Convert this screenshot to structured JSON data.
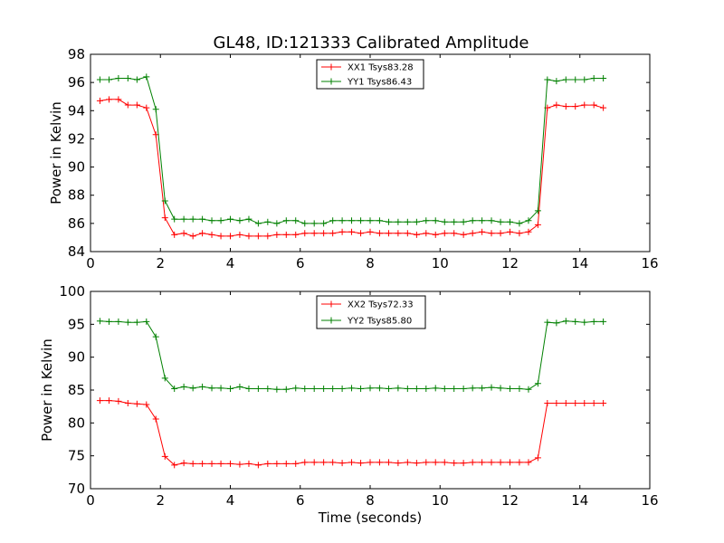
{
  "figure": {
    "title": "GL48, ID:121333 Calibrated Amplitude"
  },
  "colors": {
    "series_red": "#ff0000",
    "series_green": "#008000",
    "axes": "#000000",
    "background": "#ffffff"
  },
  "chart_data": [
    {
      "type": "line",
      "title": "GL48, ID:121333 Calibrated Amplitude",
      "xlabel": "",
      "ylabel": "Power in Kelvin",
      "xlim": [
        0,
        16
      ],
      "ylim": [
        84,
        98
      ],
      "xticks": [
        0,
        2,
        4,
        6,
        8,
        10,
        12,
        14,
        16
      ],
      "yticks": [
        84,
        86,
        88,
        90,
        92,
        94,
        96,
        98
      ],
      "grid": false,
      "legend_position": "top-center",
      "marker": "plus",
      "x": [
        0.27,
        0.53,
        0.8,
        1.07,
        1.33,
        1.6,
        1.87,
        2.13,
        2.4,
        2.67,
        2.93,
        3.2,
        3.47,
        3.73,
        4.0,
        4.27,
        4.53,
        4.8,
        5.07,
        5.33,
        5.6,
        5.87,
        6.13,
        6.4,
        6.67,
        6.93,
        7.2,
        7.47,
        7.73,
        8.0,
        8.27,
        8.53,
        8.8,
        9.07,
        9.33,
        9.6,
        9.87,
        10.13,
        10.4,
        10.67,
        10.93,
        11.2,
        11.47,
        11.73,
        12.0,
        12.27,
        12.53,
        12.8,
        13.07,
        13.33,
        13.6,
        13.87,
        14.13,
        14.4,
        14.67
      ],
      "series": [
        {
          "name": "XX1 Tsys83.28",
          "color": "#ff0000",
          "values": [
            94.7,
            94.8,
            94.8,
            94.4,
            94.4,
            94.2,
            92.3,
            86.4,
            85.2,
            85.3,
            85.1,
            85.3,
            85.2,
            85.1,
            85.1,
            85.2,
            85.1,
            85.1,
            85.1,
            85.2,
            85.2,
            85.2,
            85.3,
            85.3,
            85.3,
            85.3,
            85.4,
            85.4,
            85.3,
            85.4,
            85.3,
            85.3,
            85.3,
            85.3,
            85.2,
            85.3,
            85.2,
            85.3,
            85.3,
            85.2,
            85.3,
            85.4,
            85.3,
            85.3,
            85.4,
            85.3,
            85.4,
            85.9,
            94.2,
            94.4,
            94.3,
            94.3,
            94.4,
            94.4,
            94.2
          ]
        },
        {
          "name": "YY1 Tsys86.43",
          "color": "#008000",
          "values": [
            96.2,
            96.2,
            96.3,
            96.3,
            96.2,
            96.4,
            94.1,
            87.6,
            86.3,
            86.3,
            86.3,
            86.3,
            86.2,
            86.2,
            86.3,
            86.2,
            86.3,
            86.0,
            86.1,
            86.0,
            86.2,
            86.2,
            86.0,
            86.0,
            86.0,
            86.2,
            86.2,
            86.2,
            86.2,
            86.2,
            86.2,
            86.1,
            86.1,
            86.1,
            86.1,
            86.2,
            86.2,
            86.1,
            86.1,
            86.1,
            86.2,
            86.2,
            86.2,
            86.1,
            86.1,
            86.0,
            86.2,
            86.9,
            96.2,
            96.1,
            96.2,
            96.2,
            96.2,
            96.3,
            96.3
          ]
        }
      ]
    },
    {
      "type": "line",
      "title": "",
      "xlabel": "Time (seconds)",
      "ylabel": "Power in Kelvin",
      "xlim": [
        0,
        16
      ],
      "ylim": [
        70,
        100
      ],
      "xticks": [
        0,
        2,
        4,
        6,
        8,
        10,
        12,
        14,
        16
      ],
      "yticks": [
        70,
        75,
        80,
        85,
        90,
        95,
        100
      ],
      "grid": false,
      "legend_position": "top-center",
      "marker": "plus",
      "x": [
        0.27,
        0.53,
        0.8,
        1.07,
        1.33,
        1.6,
        1.87,
        2.13,
        2.4,
        2.67,
        2.93,
        3.2,
        3.47,
        3.73,
        4.0,
        4.27,
        4.53,
        4.8,
        5.07,
        5.33,
        5.6,
        5.87,
        6.13,
        6.4,
        6.67,
        6.93,
        7.2,
        7.47,
        7.73,
        8.0,
        8.27,
        8.53,
        8.8,
        9.07,
        9.33,
        9.6,
        9.87,
        10.13,
        10.4,
        10.67,
        10.93,
        11.2,
        11.47,
        11.73,
        12.0,
        12.27,
        12.53,
        12.8,
        13.07,
        13.33,
        13.6,
        13.87,
        14.13,
        14.4,
        14.67
      ],
      "series": [
        {
          "name": "XX2 Tsys72.33",
          "color": "#ff0000",
          "values": [
            83.4,
            83.4,
            83.3,
            83.0,
            82.9,
            82.8,
            80.6,
            74.9,
            73.6,
            73.9,
            73.8,
            73.8,
            73.8,
            73.8,
            73.8,
            73.7,
            73.8,
            73.6,
            73.8,
            73.8,
            73.8,
            73.8,
            74.0,
            74.0,
            74.0,
            74.0,
            73.9,
            74.0,
            73.9,
            74.0,
            74.0,
            74.0,
            73.9,
            74.0,
            73.9,
            74.0,
            74.0,
            74.0,
            73.9,
            73.9,
            74.0,
            74.0,
            74.0,
            74.0,
            74.0,
            74.0,
            74.0,
            74.7,
            83.0,
            83.0,
            83.0,
            83.0,
            83.0,
            83.0,
            83.0
          ]
        },
        {
          "name": "YY2 Tsys85.80",
          "color": "#008000",
          "values": [
            95.5,
            95.4,
            95.4,
            95.3,
            95.3,
            95.4,
            93.1,
            86.8,
            85.2,
            85.5,
            85.3,
            85.5,
            85.3,
            85.3,
            85.2,
            85.5,
            85.2,
            85.2,
            85.2,
            85.1,
            85.1,
            85.3,
            85.2,
            85.2,
            85.2,
            85.2,
            85.2,
            85.3,
            85.2,
            85.3,
            85.3,
            85.2,
            85.3,
            85.2,
            85.2,
            85.2,
            85.3,
            85.2,
            85.2,
            85.2,
            85.3,
            85.3,
            85.4,
            85.3,
            85.2,
            85.2,
            85.1,
            86.0,
            95.3,
            95.2,
            95.5,
            95.4,
            95.3,
            95.4,
            95.4
          ]
        }
      ]
    }
  ]
}
